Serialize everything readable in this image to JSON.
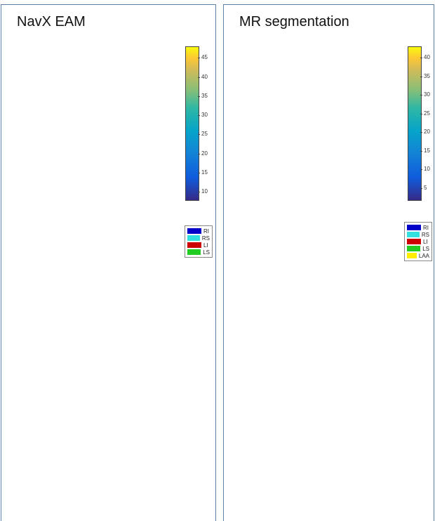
{
  "panels": {
    "left": {
      "title": "NavX EAM"
    },
    "right": {
      "title": "MR segmentation"
    }
  },
  "colorbars": {
    "left": {
      "ticks": [
        "45",
        "40",
        "35",
        "30",
        "25",
        "20",
        "15",
        "10"
      ],
      "min": 8,
      "max": 48
    },
    "right": {
      "ticks": [
        "40",
        "35",
        "30",
        "25",
        "20",
        "15",
        "10",
        "5"
      ],
      "min": 2,
      "max": 43
    }
  },
  "legends": {
    "left": [
      {
        "label": "RI",
        "color": "#0000c8"
      },
      {
        "label": "RS",
        "color": "#33e0e0"
      },
      {
        "label": "LI",
        "color": "#cc0000"
      },
      {
        "label": "LS",
        "color": "#22cc22"
      }
    ],
    "right": [
      {
        "label": "RI",
        "color": "#0000c8"
      },
      {
        "label": "RS",
        "color": "#33e0e0"
      },
      {
        "label": "LI",
        "color": "#cc0000"
      },
      {
        "label": "LS",
        "color": "#22cc22"
      },
      {
        "label": "LAA",
        "color": "#ffee00"
      }
    ]
  },
  "colors": {
    "border": "#5b7fa6",
    "mesh": "#cfcfcf",
    "landmark_green": "#22cc22",
    "landmark_red": "#dd1111"
  }
}
